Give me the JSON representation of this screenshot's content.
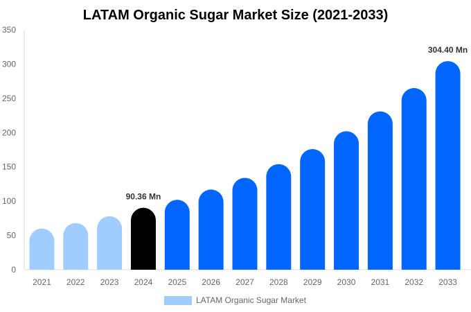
{
  "chart_data": {
    "type": "bar",
    "title": "LATAM Organic Sugar Market Size (2021-2033)",
    "categories": [
      "2021",
      "2022",
      "2023",
      "2024",
      "2025",
      "2026",
      "2027",
      "2028",
      "2029",
      "2030",
      "2031",
      "2032",
      "2033"
    ],
    "series": [
      {
        "name": "LATAM Organic Sugar Market",
        "values": [
          60,
          68,
          78,
          90.36,
          102,
          117,
          134,
          154,
          176,
          202,
          231,
          265,
          304.4
        ]
      }
    ],
    "bar_colors": [
      "#a0cdfd",
      "#a0cdfd",
      "#a0cdfd",
      "#000000",
      "#0066ff",
      "#0066ff",
      "#0066ff",
      "#0066ff",
      "#0066ff",
      "#0066ff",
      "#0066ff",
      "#0066ff",
      "#0066ff"
    ],
    "data_labels": [
      {
        "index": 3,
        "text": "90.36 Mn"
      },
      {
        "index": 12,
        "text": "304.40 Mn"
      }
    ],
    "ylim": [
      0,
      350
    ],
    "yticks": [
      0,
      50,
      100,
      150,
      200,
      250,
      300,
      350
    ],
    "grid": false,
    "legend_placement": "bottom",
    "legend_color": "#a0cdfd"
  }
}
